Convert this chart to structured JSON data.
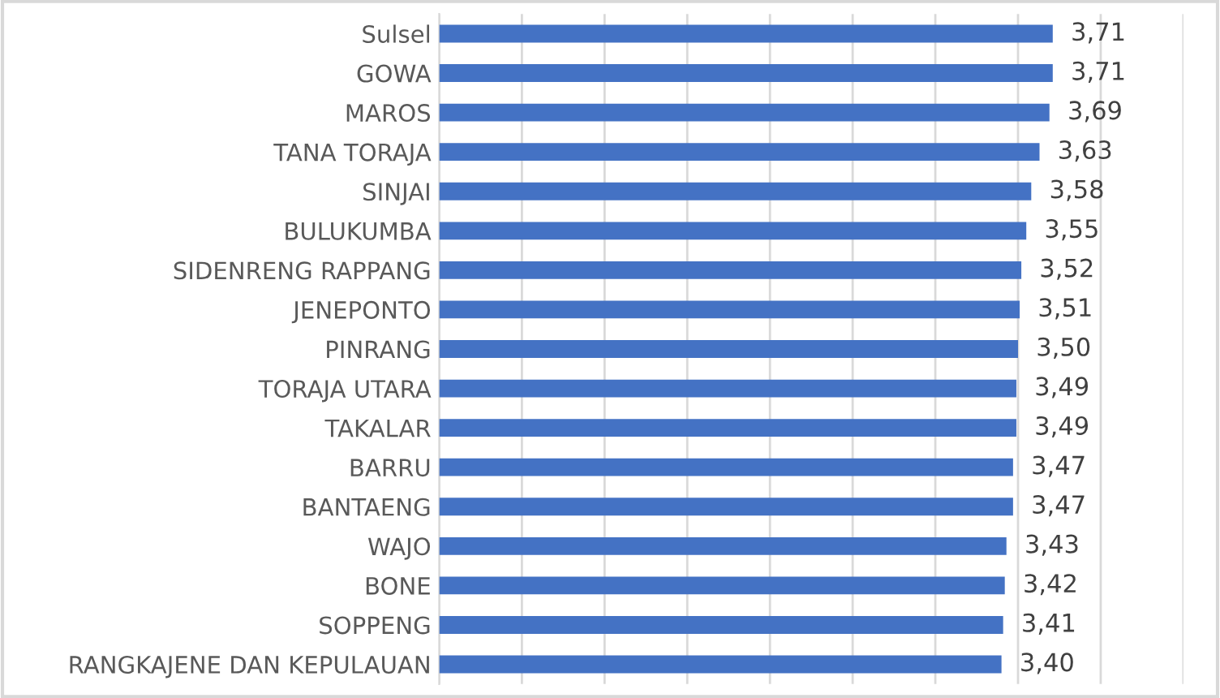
{
  "chart_data": {
    "type": "bar",
    "orientation": "horizontal",
    "categories": [
      "Sulsel",
      "GOWA",
      "MAROS",
      "TANA TORAJA",
      "SINJAI",
      "BULUKUMBA",
      "SIDENRENG RAPPANG",
      "JENEPONTO",
      "PINRANG",
      "TORAJA UTARA",
      "TAKALAR",
      "BARRU",
      "BANTAENG",
      "WAJO",
      "BONE",
      "SOPPENG",
      "RANGKAJENE DAN KEPULAUAN"
    ],
    "values": [
      3.71,
      3.71,
      3.69,
      3.63,
      3.58,
      3.55,
      3.52,
      3.51,
      3.5,
      3.49,
      3.49,
      3.47,
      3.47,
      3.43,
      3.42,
      3.41,
      3.4
    ],
    "value_labels": [
      "3,71",
      "3,71",
      "3,69",
      "3,63",
      "3,58",
      "3,55",
      "3,52",
      "3,51",
      "3,50",
      "3,49",
      "3,49",
      "3,47",
      "3,47",
      "3,43",
      "3,42",
      "3,41",
      "3,40"
    ],
    "color": "#4472c4",
    "xlim": [
      0,
      4.5
    ],
    "xticks": [
      {
        "value": 0,
        "label": null
      },
      {
        "value": 0.5,
        "label": null
      },
      {
        "value": 1,
        "label": null
      },
      {
        "value": 1.5,
        "label": null
      },
      {
        "value": 2,
        "label": null
      },
      {
        "value": 2.5,
        "label": null
      },
      {
        "value": 3,
        "label": null
      },
      {
        "value": 3.5,
        "label": null
      },
      {
        "value": 4,
        "label": null
      },
      {
        "value": 4.5,
        "label": null
      }
    ],
    "grid": "x",
    "legend": false
  }
}
